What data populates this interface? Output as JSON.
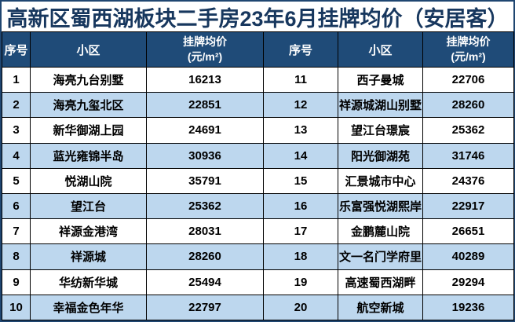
{
  "title": "高新区蜀西湖板块二手房23年6月挂牌均价（安居客）",
  "colors": {
    "title_text": "#17375e",
    "header_bg": "#1f4b78",
    "header_text": "#ffffff",
    "row_alt_bg": "#bdd7ee",
    "row_bg": "#ffffff",
    "grid_border": "#000000",
    "outer_border": "#1f4671"
  },
  "table": {
    "headers": {
      "index": "序号",
      "community": "小区",
      "price_line1": "挂牌均价",
      "price_line2": "(元/m²)"
    },
    "rows": [
      {
        "left": {
          "no": "1",
          "name": "海亮九台别墅",
          "price": "16213"
        },
        "right": {
          "no": "11",
          "name": "西子曼城",
          "price": "22706"
        }
      },
      {
        "left": {
          "no": "2",
          "name": "海亮九玺北区",
          "price": "22851"
        },
        "right": {
          "no": "12",
          "name": "祥源城湖山别墅",
          "price": "28260"
        }
      },
      {
        "left": {
          "no": "3",
          "name": "新华御湖上园",
          "price": "24691"
        },
        "right": {
          "no": "13",
          "name": "望江台璟宸",
          "price": "25362"
        }
      },
      {
        "left": {
          "no": "4",
          "name": "蓝光雍锦半岛",
          "price": "30936"
        },
        "right": {
          "no": "14",
          "name": "阳光御湖苑",
          "price": "31746"
        }
      },
      {
        "left": {
          "no": "5",
          "name": "悦湖山院",
          "price": "35791"
        },
        "right": {
          "no": "15",
          "name": "汇景城市中心",
          "price": "24376"
        }
      },
      {
        "left": {
          "no": "6",
          "name": "望江台",
          "price": "25362"
        },
        "right": {
          "no": "16",
          "name": "乐富强悦湖熙岸",
          "price": "22917"
        }
      },
      {
        "left": {
          "no": "7",
          "name": "祥源金港湾",
          "price": "28031"
        },
        "right": {
          "no": "17",
          "name": "金鹏麓山院",
          "price": "26651"
        }
      },
      {
        "left": {
          "no": "8",
          "name": "祥源城",
          "price": "28260"
        },
        "right": {
          "no": "18",
          "name": "文一名门学府里",
          "price": "40289"
        }
      },
      {
        "left": {
          "no": "9",
          "name": "华纺新华城",
          "price": "25494"
        },
        "right": {
          "no": "19",
          "name": "高速蜀西湖畔",
          "price": "29294"
        }
      },
      {
        "left": {
          "no": "10",
          "name": "幸福金色年华",
          "price": "22797"
        },
        "right": {
          "no": "20",
          "name": "航空新城",
          "price": "19236"
        }
      }
    ]
  }
}
